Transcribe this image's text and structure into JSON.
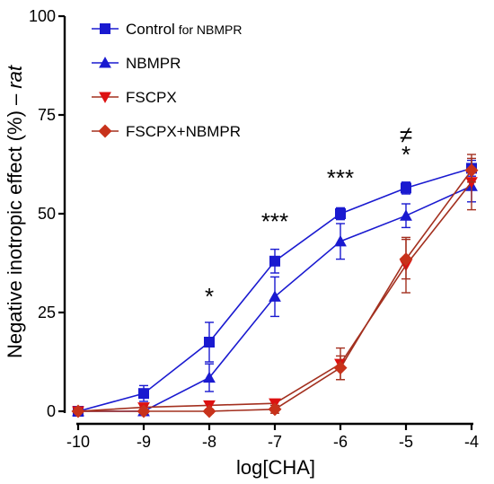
{
  "chart_data": {
    "type": "line",
    "xlabel": "log[CHA]",
    "ylabel_main": "Negative inotropic effect (%) – ",
    "ylabel_italic": "rat",
    "xlim": [
      -10,
      -4
    ],
    "ylim": [
      0,
      100
    ],
    "x_ticks": [
      -10,
      -9,
      -8,
      -7,
      -6,
      -5,
      -4
    ],
    "y_ticks": [
      0,
      25,
      50,
      75,
      100
    ],
    "x_tick_labels": [
      "-10",
      "-9",
      "-8",
      "-7",
      "-6",
      "-5",
      "-4"
    ],
    "y_tick_labels": [
      "0",
      "25",
      "50",
      "75",
      "100"
    ],
    "grid": false,
    "legend_position": "top-left",
    "series": [
      {
        "name_main": "Control",
        "name_suffix": " for NBMPR",
        "marker": "square",
        "color": "#1a1ad0",
        "line_color": "#1a1ad0",
        "x": [
          -10,
          -9,
          -8,
          -7,
          -6,
          -5,
          -4
        ],
        "y": [
          0,
          4.5,
          17.5,
          38,
          50,
          56.5,
          61.5
        ],
        "err": [
          0,
          2,
          5,
          3,
          1.5,
          1.5,
          2
        ]
      },
      {
        "name_main": "NBMPR",
        "name_suffix": "",
        "marker": "triangle-up",
        "color": "#1a1ad0",
        "line_color": "#1a1ad0",
        "x": [
          -10,
          -9,
          -8,
          -7,
          -6,
          -5,
          -4
        ],
        "y": [
          0,
          0,
          8.5,
          29,
          43,
          49.5,
          57
        ],
        "err": [
          0,
          1,
          3.5,
          5,
          4.5,
          3,
          4
        ]
      },
      {
        "name_main": "FSCPX",
        "name_suffix": "",
        "marker": "triangle-down",
        "color": "#dd1111",
        "line_color": "#a3301f",
        "x": [
          -10,
          -9,
          -8,
          -7,
          -6,
          -5,
          -4
        ],
        "y": [
          0,
          1,
          1.5,
          2,
          12,
          37,
          58
        ],
        "err": [
          0,
          0.5,
          1,
          1,
          4,
          7,
          7
        ]
      },
      {
        "name_main": "FSCPX+NBMPR",
        "name_suffix": "",
        "marker": "diamond",
        "color": "#c8321b",
        "line_color": "#a3301f",
        "x": [
          -10,
          -9,
          -8,
          -7,
          -6,
          -5,
          -4
        ],
        "y": [
          0,
          0,
          0,
          0.5,
          11,
          38.5,
          61
        ],
        "err": [
          0,
          0.5,
          0.5,
          1,
          3,
          5,
          3
        ]
      }
    ],
    "annotations": [
      {
        "text": "*",
        "x": -8,
        "y": 27
      },
      {
        "text": "***",
        "x": -7,
        "y": 46
      },
      {
        "text": "***",
        "x": -6,
        "y": 57
      },
      {
        "text": "≠",
        "x": -5,
        "y": 68
      },
      {
        "text": "*",
        "x": -5,
        "y": 63
      }
    ]
  }
}
